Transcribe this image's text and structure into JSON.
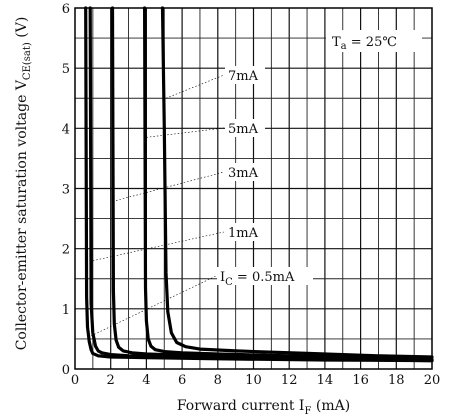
{
  "chart_data": {
    "type": "line",
    "title": "",
    "xlabel": "Forward current I_F (mA)",
    "xlabel_main": "Forward current I",
    "xlabel_sub": "F",
    "xlabel_unit": " (mA)",
    "ylabel": "Collector-emitter saturation voltage V_CE(sat) (V)",
    "ylabel_main": "Collector-emitter saturation voltage V",
    "ylabel_sub": "CE(sat)",
    "ylabel_unit": " (V)",
    "xlim": [
      0,
      20
    ],
    "ylim": [
      0,
      6
    ],
    "x_ticks": [
      "0",
      "2",
      "4",
      "6",
      "8",
      "10",
      "12",
      "14",
      "16",
      "18",
      "20"
    ],
    "y_ticks": [
      "0",
      "1",
      "2",
      "3",
      "4",
      "5",
      "6"
    ],
    "grid": true,
    "annotation": {
      "main": "T",
      "sub": "a",
      "rest": " = 25℃"
    },
    "series": [
      {
        "name": "I_C = 0.5mA",
        "label_main": "I",
        "label_sub": "C",
        "label_rest": " = 0.5mA",
        "x": [
          0.6,
          0.65,
          0.7,
          0.8,
          0.9,
          1.0,
          1.3,
          2.0,
          4.0,
          8.0,
          14.0,
          20.0
        ],
        "y": [
          6.0,
          1.2,
          0.7,
          0.45,
          0.32,
          0.26,
          0.22,
          0.2,
          0.19,
          0.17,
          0.15,
          0.14
        ]
      },
      {
        "name": "1mA",
        "label_main": "1mA",
        "x": [
          0.85,
          0.9,
          1.0,
          1.15,
          1.3,
          1.5,
          2.0,
          3.0,
          5.0,
          8.0,
          14.0,
          20.0
        ],
        "y": [
          6.0,
          1.1,
          0.6,
          0.38,
          0.3,
          0.27,
          0.24,
          0.22,
          0.2,
          0.18,
          0.16,
          0.14
        ]
      },
      {
        "name": "3mA",
        "label_main": "3mA",
        "x": [
          2.1,
          2.15,
          2.2,
          2.3,
          2.45,
          2.7,
          3.2,
          4.0,
          6.0,
          10.0,
          14.0,
          20.0
        ],
        "y": [
          6.0,
          1.3,
          0.75,
          0.48,
          0.36,
          0.3,
          0.27,
          0.25,
          0.23,
          0.2,
          0.18,
          0.15
        ]
      },
      {
        "name": "5mA",
        "label_main": "5mA",
        "x": [
          3.9,
          3.95,
          4.0,
          4.1,
          4.25,
          4.5,
          5.0,
          6.0,
          8.0,
          12.0,
          16.0,
          20.0
        ],
        "y": [
          6.0,
          1.35,
          0.8,
          0.5,
          0.38,
          0.32,
          0.29,
          0.27,
          0.25,
          0.22,
          0.19,
          0.16
        ]
      },
      {
        "name": "7mA",
        "label_main": "7mA",
        "x": [
          4.9,
          5.0,
          5.1,
          5.2,
          5.4,
          5.7,
          6.2,
          7.0,
          9.0,
          13.0,
          17.0,
          20.0
        ],
        "y": [
          6.0,
          4.0,
          1.6,
          0.95,
          0.6,
          0.44,
          0.37,
          0.33,
          0.3,
          0.26,
          0.22,
          0.2
        ]
      }
    ]
  }
}
